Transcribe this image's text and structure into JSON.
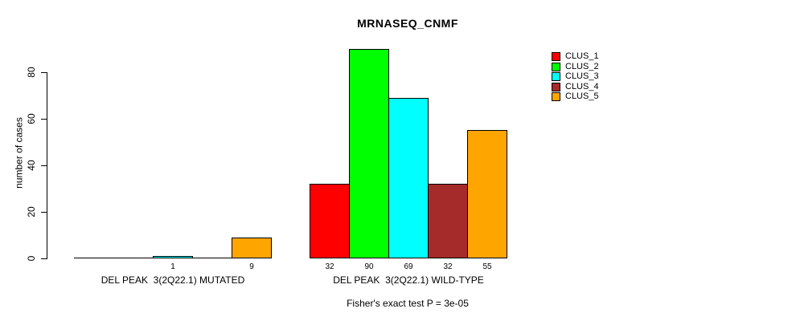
{
  "chart_data": {
    "type": "bar",
    "title": "MRNASEQ_CNMF",
    "ylabel": "number of cases",
    "xlabel": "",
    "footnote": "Fisher's exact test P = 3e-05",
    "grid": false,
    "legend_position": "top-right",
    "ylim": [
      0,
      90
    ],
    "yticks": [
      0,
      20,
      40,
      60,
      80
    ],
    "categories": [
      "DEL PEAK  3(2Q22.1) MUTATED",
      "DEL PEAK  3(2Q22.1) WILD-TYPE"
    ],
    "series": [
      {
        "name": "CLUS_1",
        "color": "#FF0000",
        "values": [
          0,
          32
        ]
      },
      {
        "name": "CLUS_2",
        "color": "#00FF00",
        "values": [
          0,
          90
        ]
      },
      {
        "name": "CLUS_3",
        "color": "#00FFFF",
        "values": [
          1,
          69
        ]
      },
      {
        "name": "CLUS_4",
        "color": "#A52A2A",
        "values": [
          0,
          32
        ]
      },
      {
        "name": "CLUS_5",
        "color": "#FFA500",
        "values": [
          9,
          55
        ]
      }
    ],
    "bar_value_labels_shown": "values greater than zero are printed under each bar"
  },
  "colors": {
    "background": "#FFFFFF",
    "axis": "#000000",
    "text": "#000000"
  }
}
